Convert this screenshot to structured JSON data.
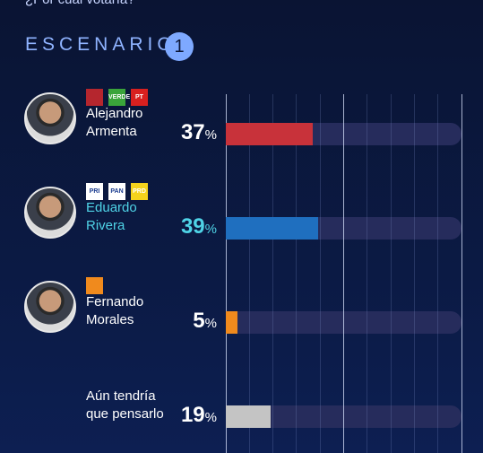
{
  "header": {
    "question": "¿Por cuál votaría?",
    "section": "ESCENARIO",
    "section_number": "1"
  },
  "party_logos": [
    [
      {
        "color": "#b5262e"
      },
      {
        "color": "#3aa43a",
        "label": "VERDE"
      },
      {
        "color": "#d8201f",
        "label": "PT"
      }
    ],
    [
      {
        "color": "#ffffff",
        "label": "PRI"
      },
      {
        "color": "#ffffff",
        "label": "PAN"
      },
      {
        "color": "#f5d31c",
        "label": "PRD"
      }
    ],
    [
      {
        "color": "#f08a1d"
      }
    ],
    []
  ],
  "chart_data": {
    "type": "bar",
    "orientation": "horizontal",
    "categories": [
      "Alejandro Armenta",
      "Eduardo Rivera",
      "Fernando Morales",
      "Aún tendría que pensarlo"
    ],
    "values": [
      37,
      39,
      5,
      19
    ],
    "value_labels": [
      "37%",
      "39%",
      "5%",
      "19%"
    ],
    "colors": [
      "#c8323a",
      "#1f6fbf",
      "#f08a1d",
      "#c4c4c4"
    ],
    "label_colors": [
      "#ffffff",
      "#4fd3e6",
      "#ffffff",
      "#ffffff"
    ],
    "xlim": [
      0,
      100
    ],
    "xticks": [
      0,
      10,
      20,
      30,
      40,
      50,
      60,
      70,
      80,
      90,
      100
    ],
    "grid": true
  }
}
